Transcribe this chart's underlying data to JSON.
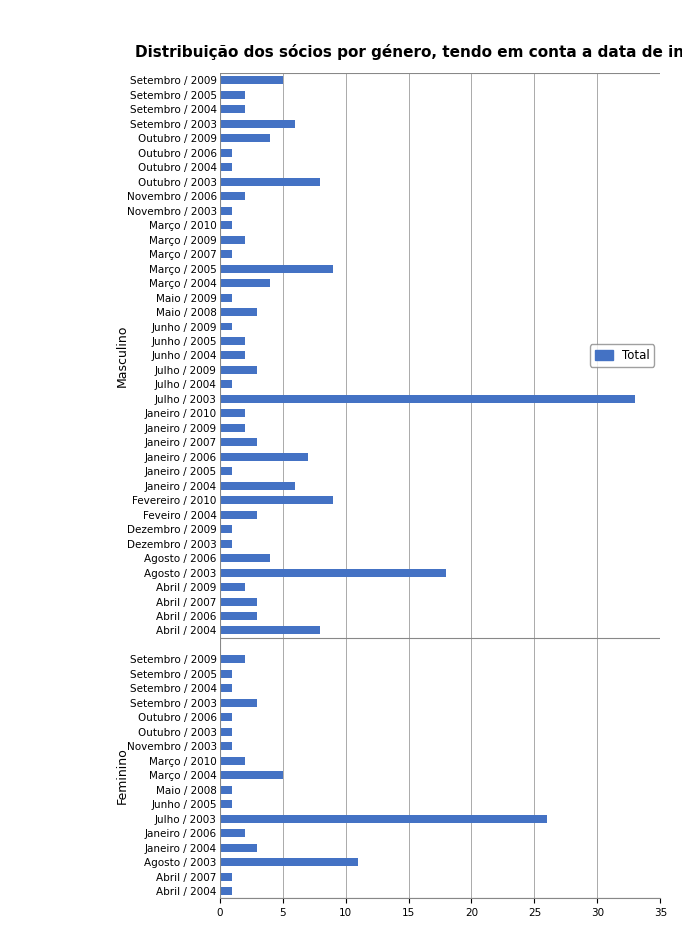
{
  "title": "Distribuição dos sócios por género, tendo em conta a data de inscrição",
  "masculine_labels": [
    "Setembro / 2009",
    "Setembro / 2005",
    "Setembro / 2004",
    "Setembro / 2003",
    "Outubro / 2009",
    "Outubro / 2006",
    "Outubro / 2004",
    "Outubro / 2003",
    "Novembro / 2006",
    "Novembro / 2003",
    "Março / 2010",
    "Março / 2009",
    "Março / 2007",
    "Março / 2005",
    "Março / 2004",
    "Maio / 2009",
    "Maio / 2008",
    "Junho / 2009",
    "Junho / 2005",
    "Junho / 2004",
    "Julho / 2009",
    "Julho / 2004",
    "Julho / 2003",
    "Janeiro / 2010",
    "Janeiro / 2009",
    "Janeiro / 2007",
    "Janeiro / 2006",
    "Janeiro / 2005",
    "Janeiro / 2004",
    "Fevereiro / 2010",
    "Feveiro / 2004",
    "Dezembro / 2009",
    "Dezembro / 2003",
    "Agosto / 2006",
    "Agosto / 2003",
    "Abril / 2009",
    "Abril / 2007",
    "Abril / 2006",
    "Abril / 2004"
  ],
  "masculine_values": [
    5,
    2,
    2,
    6,
    4,
    1,
    1,
    8,
    2,
    1,
    1,
    2,
    1,
    9,
    4,
    1,
    3,
    1,
    2,
    2,
    3,
    1,
    33,
    2,
    2,
    3,
    7,
    1,
    6,
    9,
    3,
    1,
    1,
    4,
    18,
    2,
    3,
    3,
    8
  ],
  "feminine_labels": [
    "Setembro / 2009",
    "Setembro / 2005",
    "Setembro / 2004",
    "Setembro / 2003",
    "Outubro / 2006",
    "Outubro / 2003",
    "Novembro / 2003",
    "Março / 2010",
    "Março / 2004",
    "Maio / 2008",
    "Junho / 2005",
    "Julho / 2003",
    "Janeiro / 2006",
    "Janeiro / 2004",
    "Agosto / 2003",
    "Abril / 2007",
    "Abril / 2004"
  ],
  "feminine_values": [
    2,
    1,
    1,
    3,
    1,
    1,
    1,
    2,
    5,
    1,
    1,
    26,
    2,
    3,
    11,
    1,
    1
  ],
  "bar_color": "#4472C4",
  "bar_height": 0.55,
  "xlim": [
    0,
    35
  ],
  "xticks": [
    0,
    5,
    10,
    15,
    20,
    25,
    30,
    35
  ],
  "legend_label": "Total",
  "group_label_masculine": "Masculino",
  "group_label_feminine": "Feminino",
  "title_fontsize": 11,
  "tick_fontsize": 7.5,
  "group_label_fontsize": 9
}
